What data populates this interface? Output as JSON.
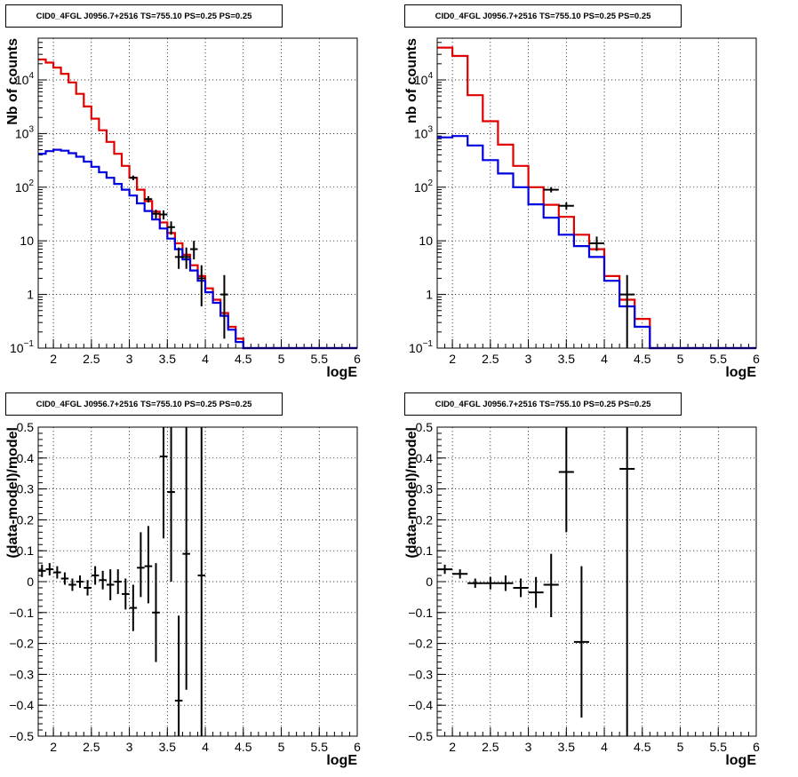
{
  "colors": {
    "data": "#000000",
    "total_model": "#e00000",
    "component_model": "#0000e0",
    "grid": "#000000"
  },
  "chart_data": [
    {
      "type": "line",
      "title": "CID0_4FGL J0956.7+2516 TS=755.10 PS=0.25 PS=0.25",
      "xlabel": "logE",
      "ylabel": "Nb of counts",
      "xlim": [
        1.8,
        6.0
      ],
      "ylim": [
        0.1,
        60000
      ],
      "yscale": "log",
      "grid": true,
      "x_ticks": [
        2,
        2.5,
        3,
        3.5,
        4,
        4.5,
        5,
        5.5,
        6
      ],
      "x_tick_labels": [
        "2",
        "2.5",
        "3",
        "3.5",
        "4",
        "4.5",
        "5",
        "5.5",
        "6"
      ],
      "y_ticks": [
        0.1,
        1,
        10,
        100,
        1000,
        10000
      ],
      "y_tick_labels": [
        "10^-1",
        "1",
        "10",
        "10^2",
        "10^3",
        "10^4"
      ],
      "series": [
        {
          "kind": "step",
          "color": "#e00000",
          "edges": [
            1.8,
            1.9,
            2.0,
            2.1,
            2.2,
            2.3,
            2.4,
            2.5,
            2.6,
            2.7,
            2.8,
            2.9,
            3.0,
            3.1,
            3.2,
            3.3,
            3.4,
            3.5,
            3.6,
            3.7,
            3.8,
            3.9,
            4.0,
            4.1,
            4.2,
            4.3,
            4.4,
            4.5,
            4.6,
            4.7,
            4.8,
            4.9,
            5.0,
            5.1,
            5.2,
            5.3,
            5.4,
            5.5,
            5.6,
            5.7,
            5.8,
            5.9,
            6.0
          ],
          "values": [
            24000,
            21000,
            17000,
            13000,
            9000,
            5500,
            3200,
            1900,
            1150,
            700,
            420,
            250,
            150,
            90,
            55,
            35,
            22,
            14,
            9,
            5.5,
            3.5,
            2.2,
            1.3,
            0.8,
            0.45,
            0.25,
            0.15,
            0.1,
            0.1,
            0.1,
            0.1,
            0.1,
            0.1,
            0.1,
            0.1,
            0.1,
            0.1,
            0.1,
            0.1,
            0.1,
            0.1,
            0.1
          ]
        },
        {
          "kind": "step",
          "color": "#0000e0",
          "edges": [
            1.8,
            1.9,
            2.0,
            2.1,
            2.2,
            2.3,
            2.4,
            2.5,
            2.6,
            2.7,
            2.8,
            2.9,
            3.0,
            3.1,
            3.2,
            3.3,
            3.4,
            3.5,
            3.6,
            3.7,
            3.8,
            3.9,
            4.0,
            4.1,
            4.2,
            4.3,
            4.4,
            4.5,
            4.6,
            4.7,
            4.8,
            4.9,
            5.0,
            5.1,
            5.2,
            5.3,
            5.4,
            5.5,
            5.6,
            5.7,
            5.8,
            5.9,
            6.0
          ],
          "values": [
            420,
            470,
            500,
            480,
            430,
            370,
            300,
            240,
            190,
            150,
            115,
            90,
            70,
            50,
            36,
            25,
            17,
            11,
            7,
            4.5,
            2.8,
            1.8,
            1.1,
            0.7,
            0.4,
            0.22,
            0.13,
            0.1,
            0.1,
            0.1,
            0.1,
            0.1,
            0.1,
            0.1,
            0.1,
            0.1,
            0.1,
            0.1,
            0.1,
            0.1,
            0.1,
            0.1
          ]
        },
        {
          "kind": "points",
          "color": "#000000",
          "points": [
            {
              "x": 3.05,
              "xerr": 0.05,
              "y": 150,
              "ylo": 135,
              "yhi": 165
            },
            {
              "x": 3.25,
              "xerr": 0.05,
              "y": 60,
              "ylo": 52,
              "yhi": 68
            },
            {
              "x": 3.35,
              "xerr": 0.05,
              "y": 32,
              "ylo": 26,
              "yhi": 38
            },
            {
              "x": 3.45,
              "xerr": 0.05,
              "y": 31,
              "ylo": 25,
              "yhi": 37
            },
            {
              "x": 3.55,
              "xerr": 0.05,
              "y": 18,
              "ylo": 13,
              "yhi": 23
            },
            {
              "x": 3.65,
              "xerr": 0.05,
              "y": 5,
              "ylo": 3,
              "yhi": 7.5
            },
            {
              "x": 3.75,
              "xerr": 0.05,
              "y": 5,
              "ylo": 3,
              "yhi": 7.5
            },
            {
              "x": 3.85,
              "xerr": 0.05,
              "y": 7,
              "ylo": 4.5,
              "yhi": 10
            },
            {
              "x": 3.95,
              "xerr": 0.05,
              "y": 2,
              "ylo": 0.6,
              "yhi": 3.5
            },
            {
              "x": 4.25,
              "xerr": 0.05,
              "y": 1,
              "ylo": 0.15,
              "yhi": 2.3
            }
          ]
        }
      ]
    },
    {
      "type": "line",
      "title": "CID0_4FGL J0956.7+2516 TS=755.10 PS=0.25 PS=0.25",
      "xlabel": "logE",
      "ylabel": "nb of counts",
      "xlim": [
        1.8,
        6.0
      ],
      "ylim": [
        0.1,
        60000
      ],
      "yscale": "log",
      "grid": true,
      "x_ticks": [
        2,
        2.5,
        3,
        3.5,
        4,
        4.5,
        5,
        5.5,
        6
      ],
      "x_tick_labels": [
        "2",
        "2.5",
        "3",
        "3.5",
        "4",
        "4.5",
        "5",
        "5.5",
        "6"
      ],
      "y_ticks": [
        0.1,
        1,
        10,
        100,
        1000,
        10000
      ],
      "y_tick_labels": [
        "10^-1",
        "1",
        "10",
        "10^2",
        "10^3",
        "10^4"
      ],
      "series": [
        {
          "kind": "step",
          "color": "#e00000",
          "edges": [
            1.8,
            2.0,
            2.2,
            2.4,
            2.6,
            2.8,
            3.0,
            3.2,
            3.4,
            3.6,
            3.8,
            4.0,
            4.2,
            4.4,
            4.6,
            4.8,
            5.0,
            5.2,
            5.4,
            5.6,
            5.8,
            6.0
          ],
          "values": [
            40000,
            28000,
            5200,
            1700,
            620,
            250,
            100,
            47,
            28,
            13,
            7,
            2.2,
            0.8,
            0.35,
            0.1,
            0.1,
            0.1,
            0.1,
            0.1,
            0.1,
            0.1
          ]
        },
        {
          "kind": "step",
          "color": "#0000e0",
          "edges": [
            1.8,
            2.0,
            2.2,
            2.4,
            2.6,
            2.8,
            3.0,
            3.2,
            3.4,
            3.6,
            3.8,
            4.0,
            4.2,
            4.4,
            4.6,
            4.8,
            5.0,
            5.2,
            5.4,
            5.6,
            5.8,
            6.0
          ],
          "values": [
            850,
            900,
            600,
            320,
            180,
            100,
            48,
            27,
            13,
            8,
            5,
            1.8,
            0.6,
            0.25,
            0.1,
            0.1,
            0.1,
            0.1,
            0.1,
            0.1,
            0.1
          ]
        },
        {
          "kind": "points",
          "color": "#000000",
          "points": [
            {
              "x": 3.3,
              "xerr": 0.1,
              "y": 90,
              "ylo": 80,
              "yhi": 100
            },
            {
              "x": 3.5,
              "xerr": 0.1,
              "y": 45,
              "ylo": 38,
              "yhi": 52
            },
            {
              "x": 3.9,
              "xerr": 0.1,
              "y": 9,
              "ylo": 6.5,
              "yhi": 12
            },
            {
              "x": 4.3,
              "xerr": 0.1,
              "y": 1,
              "ylo": 0.1,
              "yhi": 2.3
            }
          ]
        }
      ]
    },
    {
      "type": "scatter",
      "title": "CID0_4FGL J0956.7+2516 TS=755.10 PS=0.25 PS=0.25",
      "xlabel": "logE",
      "ylabel": "(data-model)/model",
      "xlim": [
        1.8,
        6.0
      ],
      "ylim": [
        -0.5,
        0.5
      ],
      "yscale": "linear",
      "grid": true,
      "x_ticks": [
        2,
        2.5,
        3,
        3.5,
        4,
        4.5,
        5,
        5.5,
        6
      ],
      "x_tick_labels": [
        "2",
        "2.5",
        "3",
        "3.5",
        "4",
        "4.5",
        "5",
        "5.5",
        "6"
      ],
      "y_ticks": [
        -0.5,
        -0.4,
        -0.3,
        -0.2,
        -0.1,
        0,
        0.1,
        0.2,
        0.3,
        0.4,
        0.5
      ],
      "y_tick_labels": [
        "−0.5",
        "−0.4",
        "−0.3",
        "−0.2",
        "−0.1",
        "0",
        "0.1",
        "0.2",
        "0.3",
        "0.4",
        "0.5"
      ],
      "series": [
        {
          "kind": "points",
          "color": "#000000",
          "points": [
            {
              "x": 1.85,
              "xerr": 0.05,
              "y": 0.035,
              "ylo": 0.015,
              "yhi": 0.055
            },
            {
              "x": 1.95,
              "xerr": 0.05,
              "y": 0.04,
              "ylo": 0.02,
              "yhi": 0.06
            },
            {
              "x": 2.05,
              "xerr": 0.05,
              "y": 0.03,
              "ylo": 0.01,
              "yhi": 0.05
            },
            {
              "x": 2.15,
              "xerr": 0.05,
              "y": 0.01,
              "ylo": -0.01,
              "yhi": 0.03
            },
            {
              "x": 2.25,
              "xerr": 0.05,
              "y": -0.01,
              "ylo": -0.03,
              "yhi": 0.01
            },
            {
              "x": 2.35,
              "xerr": 0.05,
              "y": 0.0,
              "ylo": -0.02,
              "yhi": 0.02
            },
            {
              "x": 2.45,
              "xerr": 0.05,
              "y": -0.02,
              "ylo": -0.045,
              "yhi": 0.005
            },
            {
              "x": 2.55,
              "xerr": 0.05,
              "y": 0.02,
              "ylo": -0.01,
              "yhi": 0.05
            },
            {
              "x": 2.65,
              "xerr": 0.05,
              "y": 0.005,
              "ylo": -0.025,
              "yhi": 0.035
            },
            {
              "x": 2.75,
              "xerr": 0.05,
              "y": -0.01,
              "ylo": -0.06,
              "yhi": 0.04
            },
            {
              "x": 2.85,
              "xerr": 0.05,
              "y": 0.0,
              "ylo": -0.04,
              "yhi": 0.04
            },
            {
              "x": 2.95,
              "xerr": 0.05,
              "y": -0.04,
              "ylo": -0.09,
              "yhi": 0.01
            },
            {
              "x": 3.05,
              "xerr": 0.05,
              "y": -0.085,
              "ylo": -0.16,
              "yhi": -0.01
            },
            {
              "x": 3.15,
              "xerr": 0.05,
              "y": 0.045,
              "ylo": -0.05,
              "yhi": 0.16
            },
            {
              "x": 3.25,
              "xerr": 0.05,
              "y": 0.05,
              "ylo": -0.07,
              "yhi": 0.18
            },
            {
              "x": 3.35,
              "xerr": 0.05,
              "y": -0.1,
              "ylo": -0.26,
              "yhi": 0.06
            },
            {
              "x": 3.45,
              "xerr": 0.05,
              "y": 0.405,
              "ylo": 0.14,
              "yhi": 0.5
            },
            {
              "x": 3.55,
              "xerr": 0.05,
              "y": 0.29,
              "ylo": 0.0,
              "yhi": 0.5
            },
            {
              "x": 3.65,
              "xerr": 0.05,
              "y": -0.385,
              "ylo": -0.5,
              "yhi": -0.11
            },
            {
              "x": 3.75,
              "xerr": 0.05,
              "y": 0.09,
              "ylo": -0.35,
              "yhi": 0.5
            },
            {
              "x": 3.95,
              "xerr": 0.05,
              "y": 0.02,
              "ylo": -0.5,
              "yhi": 0.5
            }
          ]
        }
      ]
    },
    {
      "type": "scatter",
      "title": "CID0_4FGL J0956.7+2516 TS=755.10 PS=0.25 PS=0.25",
      "xlabel": "logE",
      "ylabel": "(data-model)/model",
      "xlim": [
        1.8,
        6.0
      ],
      "ylim": [
        -0.5,
        0.5
      ],
      "yscale": "linear",
      "grid": true,
      "x_ticks": [
        2,
        2.5,
        3,
        3.5,
        4,
        4.5,
        5,
        5.5,
        6
      ],
      "x_tick_labels": [
        "2",
        "2.5",
        "3",
        "3.5",
        "4",
        "4.5",
        "5",
        "5.5",
        "6"
      ],
      "y_ticks": [
        -0.5,
        -0.4,
        -0.3,
        -0.2,
        -0.1,
        0,
        0.1,
        0.2,
        0.3,
        0.4,
        0.5
      ],
      "y_tick_labels": [
        "−0.5",
        "−0.4",
        "−0.3",
        "−0.2",
        "−0.1",
        "0",
        "0.1",
        "0.2",
        "0.3",
        "0.4",
        "0.5"
      ],
      "series": [
        {
          "kind": "points",
          "color": "#000000",
          "points": [
            {
              "x": 1.9,
              "xerr": 0.1,
              "y": 0.04,
              "ylo": 0.025,
              "yhi": 0.055
            },
            {
              "x": 2.1,
              "xerr": 0.1,
              "y": 0.025,
              "ylo": 0.01,
              "yhi": 0.04
            },
            {
              "x": 2.3,
              "xerr": 0.1,
              "y": -0.005,
              "ylo": -0.02,
              "yhi": 0.01
            },
            {
              "x": 2.5,
              "xerr": 0.1,
              "y": -0.005,
              "ylo": -0.025,
              "yhi": 0.015
            },
            {
              "x": 2.7,
              "xerr": 0.1,
              "y": -0.005,
              "ylo": -0.03,
              "yhi": 0.02
            },
            {
              "x": 2.9,
              "xerr": 0.1,
              "y": -0.02,
              "ylo": -0.05,
              "yhi": 0.01
            },
            {
              "x": 3.1,
              "xerr": 0.1,
              "y": -0.035,
              "ylo": -0.085,
              "yhi": 0.015
            },
            {
              "x": 3.3,
              "xerr": 0.1,
              "y": -0.01,
              "ylo": -0.115,
              "yhi": 0.09
            },
            {
              "x": 3.5,
              "xerr": 0.1,
              "y": 0.355,
              "ylo": 0.16,
              "yhi": 0.5
            },
            {
              "x": 3.7,
              "xerr": 0.1,
              "y": -0.195,
              "ylo": -0.44,
              "yhi": 0.05
            },
            {
              "x": 4.3,
              "xerr": 0.1,
              "y": 0.365,
              "ylo": -0.5,
              "yhi": 0.5
            }
          ]
        }
      ]
    }
  ]
}
